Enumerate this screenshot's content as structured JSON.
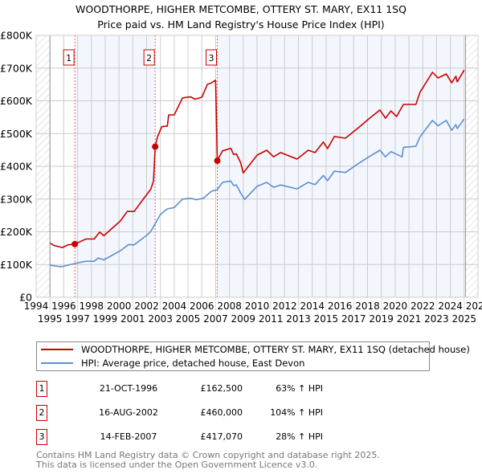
{
  "chart_data": {
    "type": "line",
    "title": "WOODTHORPE, HIGHER METCOMBE, OTTERY ST. MARY, EX11 1SQ",
    "subtitle": "Price paid vs. HM Land Registry's House Price Index (HPI)",
    "xlabel": "",
    "ylabel": "",
    "xlim": [
      1994,
      2026
    ],
    "ylim": [
      0,
      800000
    ],
    "x_ticks": [
      "1994",
      "1995",
      "1996",
      "1997",
      "1998",
      "1999",
      "2000",
      "2001",
      "2002",
      "2003",
      "2004",
      "2005",
      "2006",
      "2007",
      "2008",
      "2009",
      "2010",
      "2011",
      "2012",
      "2013",
      "2014",
      "2015",
      "2016",
      "2017",
      "2018",
      "2019",
      "2020",
      "2021",
      "2022",
      "2023",
      "2024",
      "2025",
      "2026"
    ],
    "y_ticks": [
      {
        "value": 0,
        "label": "£0"
      },
      {
        "value": 100000,
        "label": "£100K"
      },
      {
        "value": 200000,
        "label": "£200K"
      },
      {
        "value": 300000,
        "label": "£300K"
      },
      {
        "value": 400000,
        "label": "£400K"
      },
      {
        "value": 500000,
        "label": "£500K"
      },
      {
        "value": 600000,
        "label": "£600K"
      },
      {
        "value": 700000,
        "label": "£700K"
      },
      {
        "value": 800000,
        "label": "£800K"
      }
    ],
    "grid": true,
    "data_range": [
      1995,
      2025.1
    ],
    "series": [
      {
        "name": "WOODTHORPE, HIGHER METCOMBE, OTTERY ST. MARY, EX11 1SQ (detached house)",
        "color": "#cc0000",
        "points": [
          [
            1995.0,
            166000
          ],
          [
            1995.3,
            158000
          ],
          [
            1995.9,
            152000
          ],
          [
            1996.3,
            160000
          ],
          [
            1996.8,
            162500
          ],
          [
            1997.2,
            170000
          ],
          [
            1997.6,
            178000
          ],
          [
            1998.2,
            178000
          ],
          [
            1998.6,
            199000
          ],
          [
            1998.9,
            188000
          ],
          [
            2000.1,
            233000
          ],
          [
            2000.6,
            262000
          ],
          [
            2001.1,
            262000
          ],
          [
            2001.8,
            302000
          ],
          [
            2002.3,
            330000
          ],
          [
            2002.5,
            355000
          ],
          [
            2002.62,
            460000
          ],
          [
            2002.8,
            491000
          ],
          [
            2003.1,
            521000
          ],
          [
            2003.5,
            523000
          ],
          [
            2003.6,
            557000
          ],
          [
            2004.0,
            557000
          ],
          [
            2004.6,
            609000
          ],
          [
            2005.2,
            612000
          ],
          [
            2005.5,
            605000
          ],
          [
            2006.0,
            611000
          ],
          [
            2006.4,
            650000
          ],
          [
            2006.7,
            655000
          ],
          [
            2007.0,
            663000
          ],
          [
            2007.12,
            417070
          ],
          [
            2007.5,
            447000
          ],
          [
            2008.1,
            455000
          ],
          [
            2008.3,
            436000
          ],
          [
            2008.5,
            438000
          ],
          [
            2008.8,
            412000
          ],
          [
            2009.0,
            380000
          ],
          [
            2010.0,
            434000
          ],
          [
            2010.7,
            449000
          ],
          [
            2011.2,
            429000
          ],
          [
            2011.7,
            442000
          ],
          [
            2012.9,
            422000
          ],
          [
            2013.7,
            449000
          ],
          [
            2014.2,
            442000
          ],
          [
            2014.8,
            474000
          ],
          [
            2015.1,
            454000
          ],
          [
            2015.6,
            491000
          ],
          [
            2016.4,
            486000
          ],
          [
            2017.4,
            520000
          ],
          [
            2018.1,
            545000
          ],
          [
            2018.9,
            572000
          ],
          [
            2019.3,
            547000
          ],
          [
            2019.7,
            569000
          ],
          [
            2020.1,
            552000
          ],
          [
            2020.6,
            589000
          ],
          [
            2021.5,
            589000
          ],
          [
            2021.8,
            626000
          ],
          [
            2022.7,
            687000
          ],
          [
            2023.1,
            670000
          ],
          [
            2023.7,
            682000
          ],
          [
            2024.1,
            655000
          ],
          [
            2024.4,
            675000
          ],
          [
            2024.5,
            658000
          ],
          [
            2025.0,
            694000
          ]
        ]
      },
      {
        "name": "HPI: Average price, detached house, East Devon",
        "color": "#5b8fd0",
        "points": [
          [
            1995.0,
            98000
          ],
          [
            1995.8,
            93000
          ],
          [
            1996.8,
            103000
          ],
          [
            1997.6,
            110000
          ],
          [
            1998.2,
            110000
          ],
          [
            1998.5,
            120000
          ],
          [
            1998.9,
            114000
          ],
          [
            2000.1,
            142000
          ],
          [
            2000.7,
            161000
          ],
          [
            2001.1,
            160000
          ],
          [
            2002.0,
            189000
          ],
          [
            2002.3,
            201000
          ],
          [
            2003.0,
            253000
          ],
          [
            2003.5,
            270000
          ],
          [
            2004.0,
            274000
          ],
          [
            2004.6,
            300000
          ],
          [
            2005.2,
            302000
          ],
          [
            2005.6,
            298000
          ],
          [
            2006.1,
            302000
          ],
          [
            2006.7,
            324000
          ],
          [
            2007.1,
            328000
          ],
          [
            2007.5,
            351000
          ],
          [
            2008.1,
            355000
          ],
          [
            2008.3,
            341000
          ],
          [
            2008.5,
            343000
          ],
          [
            2008.8,
            319000
          ],
          [
            2009.1,
            299000
          ],
          [
            2010.0,
            339000
          ],
          [
            2010.7,
            351000
          ],
          [
            2011.2,
            336000
          ],
          [
            2011.7,
            343000
          ],
          [
            2012.9,
            331000
          ],
          [
            2013.7,
            351000
          ],
          [
            2014.2,
            344000
          ],
          [
            2014.8,
            372000
          ],
          [
            2015.1,
            356000
          ],
          [
            2015.6,
            385000
          ],
          [
            2016.4,
            381000
          ],
          [
            2017.4,
            410000
          ],
          [
            2018.1,
            429000
          ],
          [
            2018.9,
            449000
          ],
          [
            2019.3,
            429000
          ],
          [
            2019.7,
            445000
          ],
          [
            2020.5,
            429000
          ],
          [
            2020.6,
            458000
          ],
          [
            2021.5,
            461000
          ],
          [
            2021.8,
            490000
          ],
          [
            2022.7,
            540000
          ],
          [
            2023.1,
            524000
          ],
          [
            2023.7,
            540000
          ],
          [
            2024.1,
            510000
          ],
          [
            2024.4,
            527000
          ],
          [
            2024.5,
            515000
          ],
          [
            2025.0,
            545000
          ]
        ]
      }
    ],
    "sales": [
      {
        "label": "1",
        "x": 1996.8,
        "value": 162500,
        "date": "21-OCT-1996",
        "price": "£162,500",
        "hpi": "63% ↑ HPI"
      },
      {
        "label": "2",
        "x": 2002.62,
        "value": 460000,
        "date": "16-AUG-2002",
        "price": "£460,000",
        "hpi": "104% ↑ HPI"
      },
      {
        "label": "3",
        "x": 2007.12,
        "value": 417070,
        "date": "14-FEB-2007",
        "price": "£417,070",
        "hpi": "28% ↑ HPI"
      }
    ]
  },
  "legend": {
    "property": "WOODTHORPE, HIGHER METCOMBE, OTTERY ST. MARY, EX11 1SQ (detached house)",
    "hpi": "HPI: Average price, detached house, East Devon"
  },
  "footer": {
    "line1": "Contains HM Land Registry data © Crown copyright and database right 2025.",
    "line2": "This data is licensed under the Open Government Licence v3.0."
  },
  "colors": {
    "property": "#cc0000",
    "hpi": "#5b8fd0",
    "shade": "#f3f6fd",
    "grid": "#cccccc"
  }
}
